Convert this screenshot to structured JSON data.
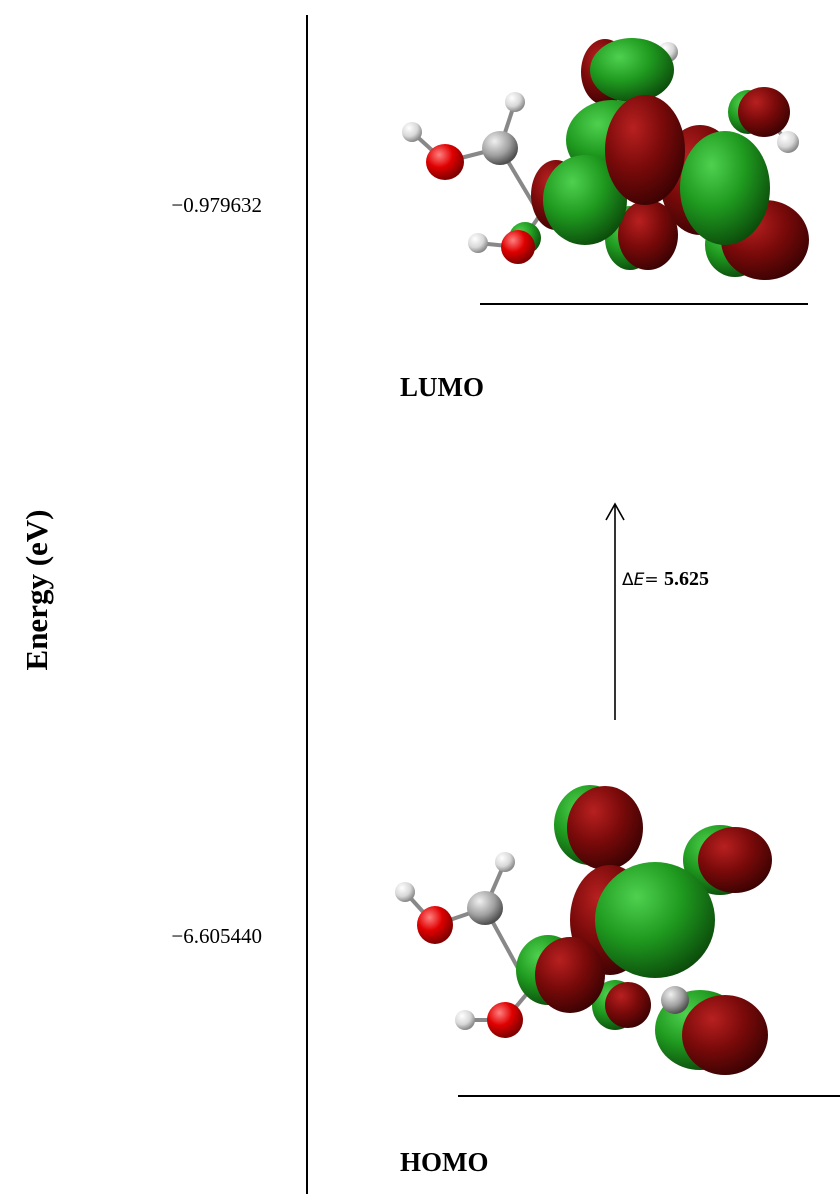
{
  "axis": {
    "label": "Energy (eV)"
  },
  "levels": [
    {
      "name": "LUMO",
      "energy": "−0.979632"
    },
    {
      "name": "HOMO",
      "energy": "−6.605440"
    }
  ],
  "gap": {
    "delta": "Δ",
    "variable": "E",
    "operator": "= ",
    "value": "5.625"
  }
}
